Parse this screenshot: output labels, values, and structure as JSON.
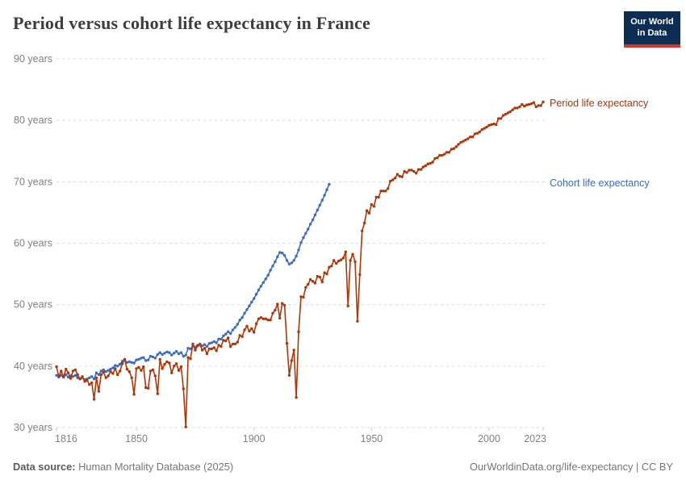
{
  "header": {
    "title": "Period versus cohort life expectancy in France",
    "logo": {
      "line1": "Our World",
      "line2": "in Data"
    }
  },
  "series_labels": {
    "period": "Period life expectancy",
    "cohort": "Cohort life expectancy"
  },
  "footer": {
    "datasource_label": "Data source:",
    "datasource_value": " Human Mortality Database (2025)",
    "right_text": "OurWorldinData.org/life-expectancy | CC BY"
  },
  "colors": {
    "period": "#b13507",
    "cohort": "#3a6bc7",
    "grid": "#dadada",
    "tick": "#c8c8c8",
    "axis_text": "#808080",
    "logo_bg": "#0d2e52",
    "logo_strip": "#d8352a"
  },
  "chart_data": {
    "type": "line",
    "title": "Period versus cohort life expectancy in France",
    "xlabel": "",
    "ylabel": "",
    "x_range": [
      1816,
      2023
    ],
    "y_range": [
      30,
      90
    ],
    "grid": true,
    "legend_position": "right-end-labels",
    "x_ticks": [
      {
        "year": 1816,
        "label": "1816"
      },
      {
        "year": 1850,
        "label": "1850"
      },
      {
        "year": 1900,
        "label": "1900"
      },
      {
        "year": 1950,
        "label": "1950"
      },
      {
        "year": 2000,
        "label": "2000"
      },
      {
        "year": 2023,
        "label": "2023"
      }
    ],
    "y_ticks": [
      {
        "value": 30,
        "label": "30 years"
      },
      {
        "value": 40,
        "label": "40 years"
      },
      {
        "value": 50,
        "label": "50 years"
      },
      {
        "value": 60,
        "label": "60 years"
      },
      {
        "value": 70,
        "label": "70 years"
      },
      {
        "value": 80,
        "label": "80 years"
      },
      {
        "value": 90,
        "label": "90 years"
      }
    ],
    "series": [
      {
        "name": "Cohort life expectancy",
        "color": "#3a6bc7",
        "start_year": 1816,
        "values": [
          38.5,
          38.2,
          38.5,
          38.2,
          38.6,
          38.2,
          38.4,
          38.3,
          38.5,
          38.1,
          37.9,
          38.1,
          37.8,
          37.9,
          38.1,
          38.3,
          37.9,
          38.9,
          38.6,
          39.2,
          39.4,
          39.1,
          39.3,
          39.5,
          39.7,
          40.1,
          40.0,
          40.3,
          40.8,
          41.0,
          40.6,
          40.7,
          40.6,
          40.5,
          41.0,
          41.1,
          41.3,
          41.4,
          40.9,
          41.0,
          41.6,
          41.5,
          41.3,
          41.9,
          42.2,
          41.9,
          42.1,
          42.3,
          42.2,
          41.8,
          42.1,
          42.4,
          42.0,
          42.2,
          41.6,
          41.8,
          42.9,
          42.8,
          43.3,
          43.1,
          43.4,
          43.6,
          43.3,
          43.5,
          43.2,
          43.7,
          43.8,
          44.0,
          43.8,
          44.4,
          44.4,
          44.9,
          45.2,
          45.6,
          45.3,
          45.9,
          46.3,
          46.8,
          47.5,
          47.9,
          48.6,
          49.2,
          49.8,
          50.4,
          51.0,
          51.7,
          52.4,
          53.0,
          53.6,
          54.2,
          54.8,
          55.6,
          56.3,
          57.0,
          57.8,
          58.5,
          58.4,
          58.0,
          57.2,
          56.6,
          56.8,
          57.2,
          57.9,
          58.9,
          60.1,
          60.9,
          61.6,
          62.3,
          63.1,
          63.8,
          64.6,
          65.4,
          66.2,
          67.0,
          67.8,
          68.7,
          69.6
        ]
      },
      {
        "name": "Period life expectancy",
        "color": "#b13507",
        "start_year": 1816,
        "values": [
          39.9,
          38.3,
          39.2,
          38.2,
          39.5,
          38.9,
          38.0,
          39.2,
          39.4,
          38.6,
          37.9,
          38.3,
          37.5,
          37.7,
          37.0,
          37.3,
          34.6,
          38.1,
          35.9,
          38.6,
          39.0,
          38.1,
          38.4,
          39.1,
          38.8,
          39.6,
          38.6,
          39.2,
          40.4,
          41.1,
          39.5,
          39.1,
          38.1,
          35.4,
          39.6,
          39.8,
          39.3,
          39.9,
          36.5,
          36.4,
          39.2,
          39.4,
          38.4,
          35.5,
          41.1,
          39.6,
          40.3,
          40.7,
          40.5,
          38.9,
          40.0,
          40.4,
          39.3,
          39.9,
          36.3,
          30.1,
          41.4,
          41.2,
          43.6,
          42.6,
          43.3,
          43.5,
          42.6,
          42.9,
          42.0,
          42.8,
          42.8,
          43.0,
          42.5,
          43.4,
          43.2,
          44.2,
          44.1,
          44.6,
          43.2,
          43.6,
          43.6,
          43.9,
          45.0,
          44.8,
          45.9,
          46.5,
          45.7,
          46.1,
          45.5,
          46.9,
          47.7,
          47.9,
          47.7,
          47.7,
          47.5,
          47.5,
          48.6,
          49.1,
          50.1,
          47.8,
          50.2,
          49.9,
          43.7,
          38.5,
          40.9,
          42.6,
          34.9,
          45.6,
          51.3,
          51.2,
          52.8,
          53.3,
          54.1,
          53.8,
          53.5,
          54.6,
          54.5,
          53.7,
          55.2,
          55.0,
          56.1,
          56.3,
          57.2,
          56.7,
          57.1,
          57.3,
          57.6,
          58.6,
          49.8,
          57.2,
          58.2,
          57.0,
          47.3,
          54.9,
          62.0,
          63.3,
          65.3,
          64.9,
          66.3,
          66.0,
          67.5,
          67.5,
          68.5,
          68.5,
          68.5,
          68.9,
          70.1,
          70.3,
          70.6,
          71.2,
          70.9,
          70.8,
          71.7,
          71.5,
          71.9,
          71.9,
          71.7,
          71.4,
          72.0,
          72.0,
          72.4,
          72.6,
          72.9,
          73.0,
          73.2,
          73.8,
          73.9,
          74.3,
          74.3,
          74.5,
          74.8,
          74.8,
          75.3,
          75.4,
          75.7,
          76.1,
          76.4,
          76.6,
          76.8,
          77.0,
          77.3,
          77.3,
          77.8,
          77.9,
          78.1,
          78.5,
          78.7,
          78.9,
          79.2,
          79.3,
          79.4,
          79.3,
          80.3,
          80.3,
          80.8,
          81.0,
          81.2,
          81.4,
          81.7,
          82.0,
          82.0,
          82.2,
          82.6,
          82.3,
          82.5,
          82.6,
          82.7,
          82.9,
          82.2,
          82.4,
          82.4,
          83.0
        ]
      }
    ]
  }
}
